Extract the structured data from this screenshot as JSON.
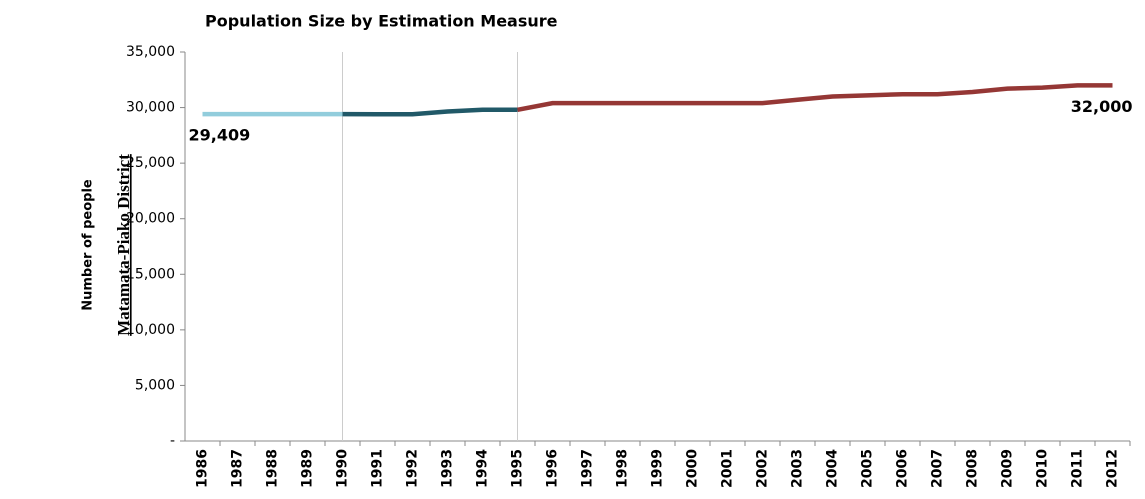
{
  "side_label": "Matamata-Piako District",
  "chart_data": {
    "type": "line",
    "title": "Population Size by Estimation Measure",
    "y_label": "Number of people",
    "categories": [
      "1986",
      "1987",
      "1988",
      "1989",
      "1990",
      "1991",
      "1992",
      "1993",
      "1994",
      "1995",
      "1996",
      "1997",
      "1998",
      "1999",
      "2000",
      "2001",
      "2002",
      "2003",
      "2004",
      "2005",
      "2006",
      "2007",
      "2008",
      "2009",
      "2010",
      "2011",
      "2012"
    ],
    "series": [
      {
        "color": "#92cddc",
        "values": [
          29409,
          29409,
          29409,
          29409,
          29409,
          null,
          null,
          null,
          null,
          null,
          null,
          null,
          null,
          null,
          null,
          null,
          null,
          null,
          null,
          null,
          null,
          null,
          null,
          null,
          null,
          null,
          null
        ],
        "value_labels": [
          "29,409",
          null,
          null,
          null,
          null,
          null,
          null,
          null,
          null,
          null,
          null,
          null,
          null,
          null,
          null,
          null,
          null,
          null,
          null,
          null,
          null,
          null,
          null,
          null,
          null,
          null,
          null
        ]
      },
      {
        "color": "#215968",
        "values": [
          null,
          null,
          null,
          null,
          29409,
          29400,
          29400,
          29650,
          29800,
          29800,
          null,
          null,
          null,
          null,
          null,
          null,
          null,
          null,
          null,
          null,
          null,
          null,
          null,
          null,
          null,
          null,
          null
        ]
      },
      {
        "color": "#953735",
        "values": [
          null,
          null,
          null,
          null,
          null,
          null,
          null,
          null,
          null,
          29800,
          30400,
          30400,
          30400,
          30400,
          30400,
          30400,
          30400,
          30700,
          31000,
          31100,
          31200,
          31200,
          31400,
          31700,
          31800,
          32000,
          32000
        ],
        "value_labels": [
          null,
          null,
          null,
          null,
          null,
          null,
          null,
          null,
          null,
          null,
          null,
          null,
          null,
          null,
          null,
          null,
          null,
          null,
          null,
          null,
          null,
          null,
          null,
          null,
          null,
          null,
          "32,000"
        ]
      }
    ],
    "ylim": [
      0,
      35000
    ],
    "yticks": [
      {
        "value": 0,
        "label": "-"
      },
      {
        "value": 5000,
        "label": "5,000"
      },
      {
        "value": 10000,
        "label": "10,000"
      },
      {
        "value": 15000,
        "label": "15,000"
      },
      {
        "value": 20000,
        "label": "20,000"
      },
      {
        "value": 25000,
        "label": "25,000"
      },
      {
        "value": 30000,
        "label": "30,000"
      },
      {
        "value": 35000,
        "label": "35,000"
      }
    ]
  }
}
